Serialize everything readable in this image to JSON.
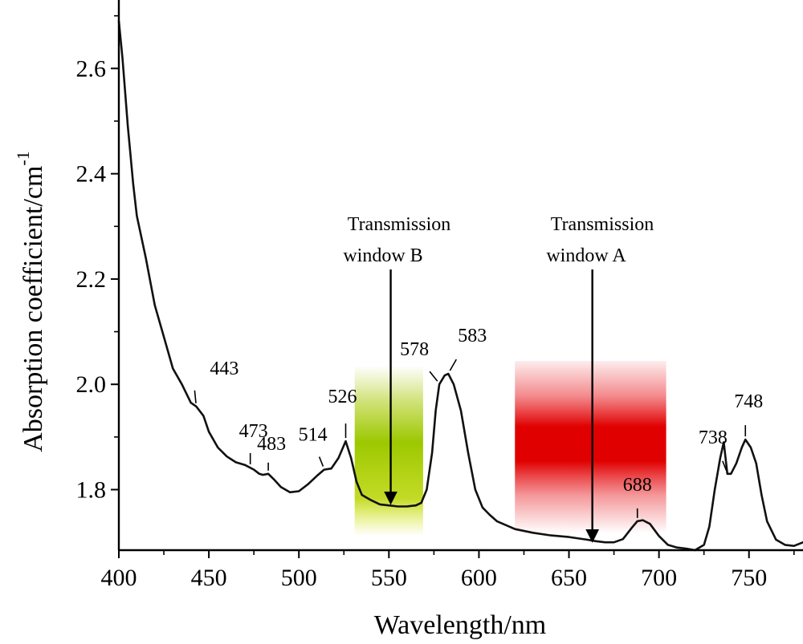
{
  "chart_data": {
    "type": "line",
    "title": "",
    "xlabel": "Wavelength/nm",
    "ylabel_main": "Absorption coefficient/cm",
    "ylabel_sup": "-1",
    "xlim": [
      400,
      780
    ],
    "ylim": [
      1.685,
      2.73
    ],
    "x_ticks": [
      400,
      450,
      500,
      550,
      600,
      650,
      700,
      750
    ],
    "x_tick_labels": [
      "400",
      "450",
      "500",
      "550",
      "600",
      "650",
      "700",
      "750"
    ],
    "y_ticks": [
      1.8,
      2.0,
      2.2,
      2.4,
      2.6
    ],
    "y_tick_labels": [
      "1.8",
      "2.0",
      "2.2",
      "2.4",
      "2.6"
    ],
    "grid": false,
    "series": [
      {
        "x": [
          400,
          402,
          405,
          408,
          410,
          415,
          420,
          425,
          430,
          435,
          440,
          443,
          447,
          450,
          455,
          460,
          465,
          470,
          475,
          478,
          480,
          483,
          486,
          490,
          495,
          500,
          505,
          510,
          514,
          518,
          522,
          526,
          529,
          532,
          535,
          540,
          545,
          550,
          555,
          560,
          565,
          568,
          571,
          574,
          576,
          578,
          581,
          583,
          586,
          590,
          594,
          598,
          602,
          606,
          610,
          620,
          630,
          640,
          650,
          660,
          665,
          670,
          675,
          680,
          685,
          688,
          691,
          695,
          700,
          705,
          710,
          715,
          720,
          725,
          728,
          731,
          734,
          736,
          738,
          740,
          743,
          746,
          748,
          751,
          754,
          757,
          760,
          765,
          770,
          775,
          780
        ],
        "y": [
          2.69,
          2.62,
          2.49,
          2.38,
          2.32,
          2.24,
          2.15,
          2.09,
          2.03,
          2.0,
          1.965,
          1.958,
          1.94,
          1.91,
          1.88,
          1.863,
          1.852,
          1.847,
          1.838,
          1.83,
          1.828,
          1.83,
          1.82,
          1.805,
          1.795,
          1.797,
          1.81,
          1.826,
          1.838,
          1.84,
          1.86,
          1.892,
          1.86,
          1.815,
          1.79,
          1.78,
          1.772,
          1.77,
          1.768,
          1.768,
          1.77,
          1.775,
          1.8,
          1.87,
          1.95,
          2.0,
          2.017,
          2.02,
          2.0,
          1.95,
          1.87,
          1.8,
          1.766,
          1.752,
          1.74,
          1.725,
          1.718,
          1.713,
          1.71,
          1.705,
          1.702,
          1.7,
          1.7,
          1.706,
          1.728,
          1.74,
          1.742,
          1.735,
          1.712,
          1.695,
          1.69,
          1.688,
          1.685,
          1.695,
          1.73,
          1.8,
          1.86,
          1.89,
          1.83,
          1.83,
          1.85,
          1.88,
          1.895,
          1.88,
          1.85,
          1.79,
          1.74,
          1.705,
          1.695,
          1.693,
          1.7
        ]
      }
    ],
    "peaks": [
      {
        "label": "443",
        "x": 443,
        "y": 1.958
      },
      {
        "label": "473",
        "x": 473,
        "y": 1.842
      },
      {
        "label": "483",
        "x": 483,
        "y": 1.83
      },
      {
        "label": "514",
        "x": 514,
        "y": 1.838
      },
      {
        "label": "526",
        "x": 526,
        "y": 1.892
      },
      {
        "label": "578",
        "x": 578,
        "y": 2.0
      },
      {
        "label": "583",
        "x": 583,
        "y": 2.02
      },
      {
        "label": "688",
        "x": 688,
        "y": 1.74
      },
      {
        "label": "738",
        "x": 738,
        "y": 1.83
      },
      {
        "label": "748",
        "x": 748,
        "y": 1.895
      }
    ],
    "windows": [
      {
        "label_line1": "Transmission",
        "label_line2": "window B",
        "x_from": 531,
        "x_to": 569,
        "arrow_x": 551,
        "arrow_to_y": 1.77,
        "color": "#a6c800"
      },
      {
        "label_line1": "Transmission",
        "label_line2": "window A",
        "x_from": 620,
        "x_to": 704,
        "arrow_x": 663,
        "arrow_to_y": 1.698,
        "color": "#e8191f"
      }
    ]
  }
}
